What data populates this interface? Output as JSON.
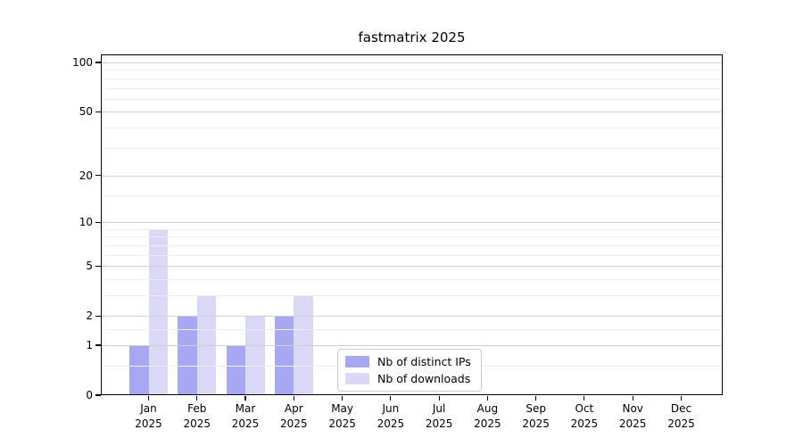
{
  "chart_data": {
    "type": "bar",
    "title": "fastmatrix 2025",
    "categories": [
      "Jan 2025",
      "Feb 2025",
      "Mar 2025",
      "Apr 2025",
      "May 2025",
      "Jun 2025",
      "Jul 2025",
      "Aug 2025",
      "Sep 2025",
      "Oct 2025",
      "Nov 2025",
      "Dec 2025"
    ],
    "series": [
      {
        "name": "Nb of distinct IPs",
        "color": "#a7a7f2",
        "values": [
          1,
          2,
          1,
          2,
          0,
          0,
          0,
          0,
          0,
          0,
          0,
          0
        ]
      },
      {
        "name": "Nb of downloads",
        "color": "#d9d9f7",
        "values": [
          9,
          3,
          2,
          3,
          0,
          0,
          0,
          0,
          0,
          0,
          0,
          0
        ]
      }
    ],
    "xlabel": "",
    "ylabel": "",
    "yscale": "log1p",
    "ylim": [
      0,
      113
    ],
    "yticks": [
      0,
      1,
      2,
      5,
      10,
      20,
      50,
      100
    ],
    "yticks_minor": [
      0.5,
      1.5,
      3,
      4,
      6,
      7,
      8,
      9,
      15,
      30,
      40,
      60,
      70,
      80,
      90
    ],
    "grid": "horizontal",
    "legend": {
      "position": "inside-lower-center"
    }
  }
}
